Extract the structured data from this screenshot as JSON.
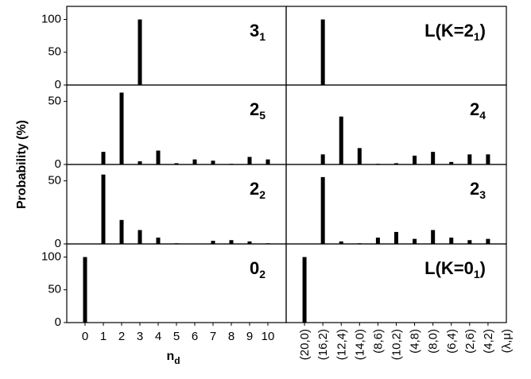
{
  "chart_data": {
    "type": "bar",
    "color": "#000000",
    "ylabel": "Probability (%)",
    "columns": [
      {
        "categories": [
          "0",
          "1",
          "2",
          "3",
          "4",
          "5",
          "6",
          "7",
          "8",
          "9",
          "10"
        ],
        "xlabel": {
          "text": "n",
          "sub": "d"
        },
        "xlim": [
          -1,
          11
        ]
      },
      {
        "categories": [
          "(20,0)",
          "(16,2)",
          "(12,4)",
          "(14,0)",
          "(8,6)",
          "(10,2)",
          "(4,8)",
          "(8,0)",
          "(6,4)",
          "(2,6)",
          "(4,2)"
        ],
        "xlabel": "(λ,μ)",
        "xlim": [
          -1,
          11
        ]
      }
    ],
    "rows": [
      {
        "ylim": [
          0,
          120
        ],
        "yticks": [
          0,
          50,
          100
        ],
        "panels": [
          {
            "annotation": {
              "text": "3",
              "sub": "1"
            },
            "values": [
              0,
              0,
              0,
              100,
              0,
              0,
              0,
              0,
              0,
              0,
              0
            ]
          },
          {
            "annotation": {
              "text": "L(K=2",
              "sub": "1",
              "tail": ")"
            },
            "values": [
              0,
              100,
              0,
              0,
              0,
              0,
              0,
              0,
              0,
              0,
              0
            ]
          }
        ]
      },
      {
        "ylim": [
          0,
          63
        ],
        "yticks": [
          0,
          50
        ],
        "panels": [
          {
            "annotation": {
              "text": "2",
              "sub": "5"
            },
            "values": [
              0,
              10,
              57,
              2.5,
              11,
              1,
              4,
              3,
              0.5,
              6,
              4
            ]
          },
          {
            "annotation": {
              "text": "2",
              "sub": "4"
            },
            "values": [
              0,
              8,
              38,
              13,
              0.5,
              1,
              7,
              10,
              2,
              8,
              8
            ]
          }
        ]
      },
      {
        "ylim": [
          0,
          63
        ],
        "yticks": [
          0,
          50
        ],
        "panels": [
          {
            "annotation": {
              "text": "2",
              "sub": "2"
            },
            "values": [
              0,
              55,
              19,
              11,
              5,
              0.5,
              0.3,
              2.5,
              3,
              2,
              0.5
            ]
          },
          {
            "annotation": {
              "text": "2",
              "sub": "3"
            },
            "values": [
              0,
              53,
              2,
              0.5,
              5,
              9.5,
              4,
              11,
              5,
              3,
              4
            ]
          }
        ]
      },
      {
        "ylim": [
          0,
          120
        ],
        "yticks": [
          0,
          50,
          100
        ],
        "panels": [
          {
            "annotation": {
              "text": "0",
              "sub": "2"
            },
            "values": [
              100,
              0,
              0,
              0,
              0,
              0,
              0,
              0,
              0,
              0,
              0
            ]
          },
          {
            "annotation": {
              "text": "L(K=0",
              "sub": "1",
              "tail": ")"
            },
            "values": [
              100,
              0,
              0,
              0,
              0,
              0,
              0,
              0,
              0,
              0,
              0
            ]
          }
        ]
      }
    ]
  }
}
